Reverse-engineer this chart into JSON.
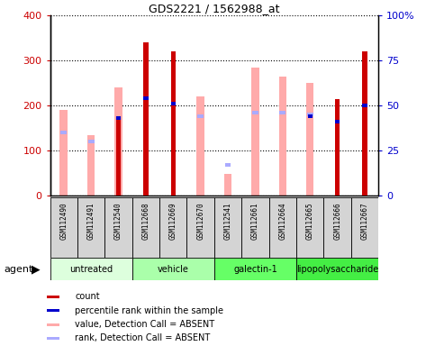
{
  "title": "GDS2221 / 1562988_at",
  "samples": [
    "GSM112490",
    "GSM112491",
    "GSM112540",
    "GSM112668",
    "GSM112669",
    "GSM112670",
    "GSM112541",
    "GSM112661",
    "GSM112664",
    "GSM112665",
    "GSM112666",
    "GSM112667"
  ],
  "groups": [
    {
      "name": "untreated",
      "indices": [
        0,
        1,
        2
      ],
      "color": "#ddffdd"
    },
    {
      "name": "vehicle",
      "indices": [
        3,
        4,
        5
      ],
      "color": "#aaffaa"
    },
    {
      "name": "galectin-1",
      "indices": [
        6,
        7,
        8
      ],
      "color": "#66ff66"
    },
    {
      "name": "lipopolysaccharide",
      "indices": [
        9,
        10,
        11
      ],
      "color": "#44ee44"
    }
  ],
  "count_values": [
    null,
    null,
    170,
    340,
    320,
    null,
    null,
    null,
    null,
    null,
    215,
    320
  ],
  "percentile_rank_pct": [
    null,
    null,
    43,
    54,
    51,
    null,
    null,
    null,
    null,
    44,
    41,
    50
  ],
  "value_absent": [
    190,
    135,
    240,
    null,
    null,
    220,
    48,
    285,
    265,
    250,
    null,
    null
  ],
  "rank_absent_pct": [
    35,
    30,
    null,
    null,
    null,
    44,
    17,
    46,
    46,
    45,
    null,
    49
  ],
  "ylim_left": [
    0,
    400
  ],
  "ylim_right": [
    0,
    100
  ],
  "yticks_left": [
    0,
    100,
    200,
    300,
    400
  ],
  "yticks_right": [
    0,
    25,
    50,
    75,
    100
  ],
  "count_color": "#cc0000",
  "percentile_color": "#0000cc",
  "value_absent_color": "#ffaaaa",
  "rank_absent_color": "#aaaaff",
  "bg_color": "#ffffff",
  "plot_bg": "#ffffff",
  "spine_color": "#000000"
}
